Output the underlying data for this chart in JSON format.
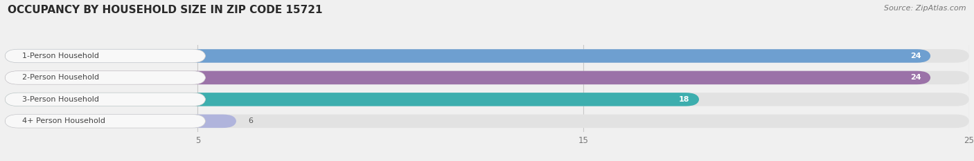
{
  "title": "OCCUPANCY BY HOUSEHOLD SIZE IN ZIP CODE 15721",
  "source": "Source: ZipAtlas.com",
  "categories": [
    "1-Person Household",
    "2-Person Household",
    "3-Person Household",
    "4+ Person Household"
  ],
  "values": [
    24,
    24,
    18,
    6
  ],
  "bar_colors": [
    "#6E9FD0",
    "#9B72A8",
    "#3DAEAE",
    "#B0B4DC"
  ],
  "value_labels": [
    "24",
    "24",
    "18",
    "6"
  ],
  "xlim": [
    0,
    25
  ],
  "xticks": [
    5,
    15,
    25
  ],
  "background_color": "#f0f0f0",
  "bar_background_color": "#e2e2e2",
  "label_bg_color": "#f8f8f8",
  "title_fontsize": 11,
  "source_fontsize": 8,
  "label_fontsize": 8,
  "value_fontsize": 8,
  "figsize": [
    14.06,
    2.33
  ],
  "dpi": 100
}
